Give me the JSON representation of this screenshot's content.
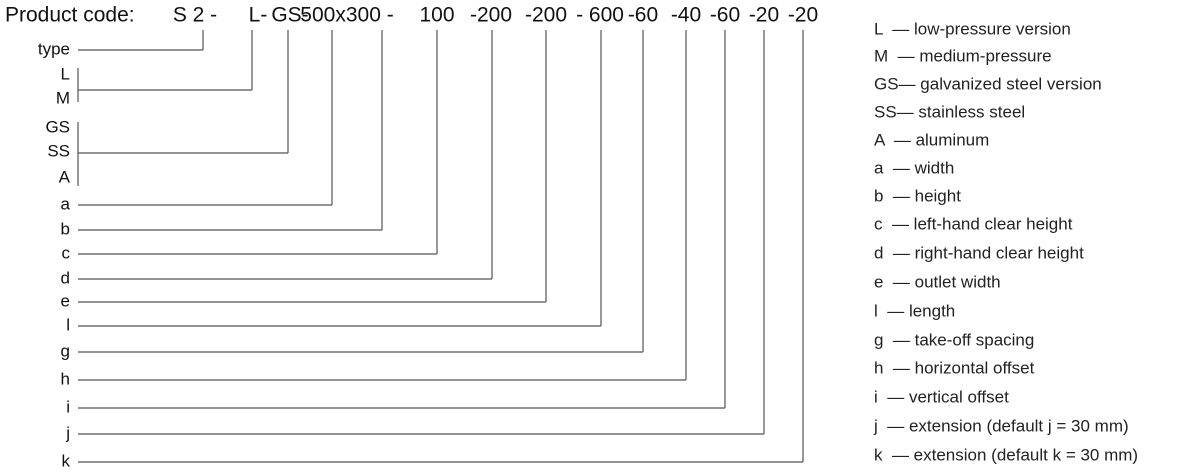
{
  "header": {
    "label": "Product code:",
    "segments": [
      "S 2 -",
      "L-",
      "GS-",
      "500x300 -",
      "100",
      "-200",
      "-200",
      "- 600",
      "-60",
      "-40",
      "-60",
      "-20",
      "-20"
    ]
  },
  "fields": [
    "type",
    "L",
    "M",
    "GS",
    "SS",
    "A",
    "a",
    "b",
    "c",
    "d",
    "e",
    "l",
    "g",
    "h",
    "i",
    "j",
    "k"
  ],
  "legend": [
    "L  — low-pressure version",
    "M  — medium-pressure",
    "GS— galvanized steel version",
    "SS— stainless steel",
    "A  — aluminum",
    "a  — width",
    "b  — height",
    "c  — left-hand clear height",
    "d  — right-hand clear height",
    "e  — outlet width",
    "l  — length",
    "g  — take-off spacing",
    "h  — horizontal offset",
    "i  — vertical offset",
    "j  — extension (default j = 30 mm)",
    "k  — extension (default k = 30 mm)"
  ]
}
